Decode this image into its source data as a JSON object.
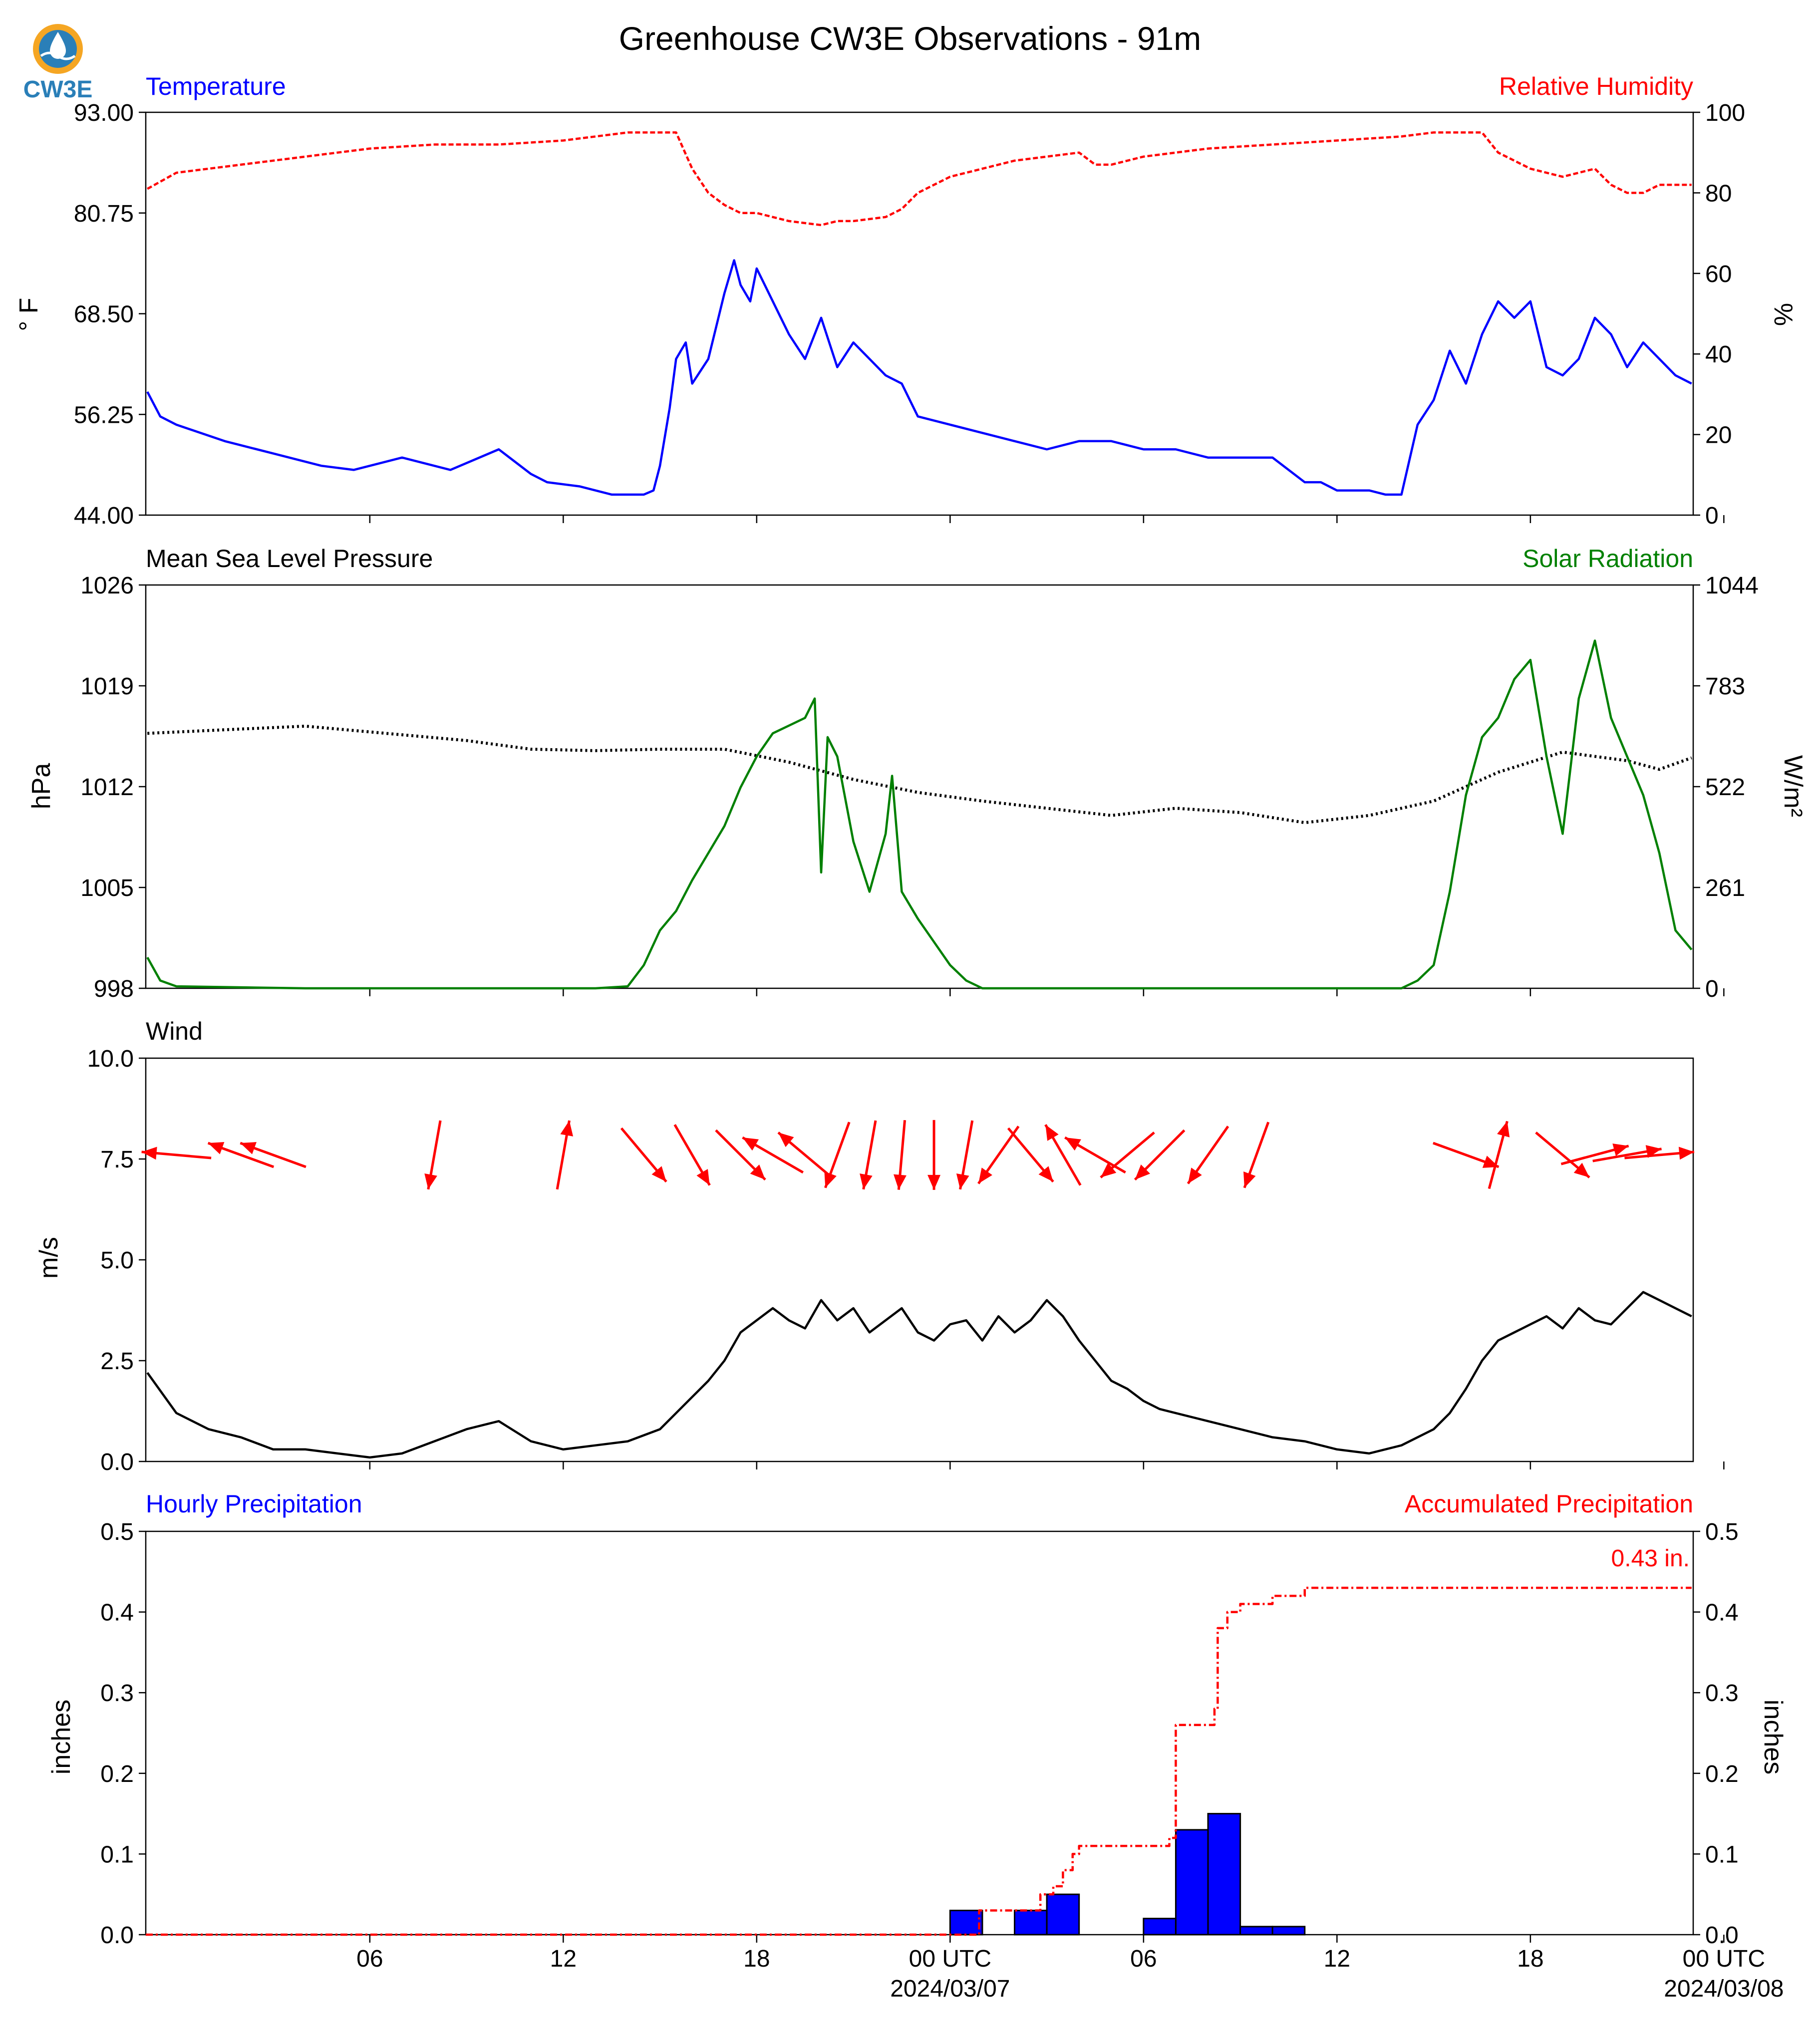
{
  "title": "Greenhouse CW3E Observations - 91m",
  "logo": {
    "text": "CW3E",
    "colors": [
      "#f5a623",
      "#2a7fb8"
    ]
  },
  "colors": {
    "temperature": "#0000ff",
    "humidity": "#ff0000",
    "pressure": "#000000",
    "solar": "#008000",
    "wind_speed": "#000000",
    "wind_arrow": "#ff0000",
    "hourly_precip": "#0000ff",
    "accum_precip": "#ff0000"
  },
  "time_axis": {
    "start_hour": -24.95,
    "end_hour": 23.05,
    "ticks": [
      {
        "hour": -18,
        "label": "06",
        "label2": ""
      },
      {
        "hour": -12,
        "label": "12",
        "label2": ""
      },
      {
        "hour": -6,
        "label": "18",
        "label2": ""
      },
      {
        "hour": 0,
        "label": "00 UTC",
        "label2": "2024/03/07"
      },
      {
        "hour": 6,
        "label": "06",
        "label2": ""
      },
      {
        "hour": 12,
        "label": "12",
        "label2": ""
      },
      {
        "hour": 18,
        "label": "18",
        "label2": ""
      },
      {
        "hour": 24,
        "label": "00 UTC",
        "label2": "2024/03/08"
      }
    ]
  },
  "chart_data": [
    {
      "type": "line",
      "left_title": "Temperature",
      "right_title": "Relative Humidity",
      "ylabel": "° F",
      "y2label": "%",
      "ylim": [
        44,
        93
      ],
      "yticks": [
        "44.00",
        "56.25",
        "68.50",
        "80.75",
        "93.00"
      ],
      "y2lim": [
        0,
        100
      ],
      "y2ticks": [
        "0",
        "20",
        "40",
        "60",
        "80",
        "100"
      ],
      "series": [
        {
          "name": "Temperature",
          "axis": "left",
          "x": [
            -24.9,
            -24.5,
            -24,
            -22.5,
            -21,
            -19.5,
            -18.5,
            -17,
            -15.5,
            -14,
            -13,
            -12.5,
            -11.5,
            -10.5,
            -10,
            -9.5,
            -9.2,
            -9,
            -8.7,
            -8.5,
            -8.2,
            -8,
            -7.5,
            -7,
            -6.7,
            -6.5,
            -6.2,
            -6,
            -5.5,
            -5,
            -4.5,
            -4,
            -3.5,
            -3,
            -2.5,
            -2,
            -1.5,
            -1,
            0,
            1,
            2,
            3,
            4,
            5,
            6,
            7,
            8,
            9,
            10,
            11,
            11.5,
            12,
            12.5,
            13,
            13.5,
            14,
            14.5,
            15,
            15.5,
            16,
            16.5,
            17,
            17.5,
            18,
            18.5,
            19,
            19.5,
            20,
            20.5,
            21,
            21.5,
            22,
            22.5,
            23
          ],
          "values": [
            59,
            56,
            55,
            53,
            51.5,
            50,
            49.5,
            51,
            49.5,
            52,
            49,
            48,
            47.5,
            46.5,
            46.5,
            46.5,
            47,
            50,
            57,
            63,
            65,
            60,
            63,
            71,
            75,
            72,
            70,
            74,
            70,
            66,
            63,
            68,
            62,
            65,
            63,
            61,
            60,
            56,
            55,
            54,
            53,
            52,
            53,
            53,
            52,
            52,
            51,
            51,
            51,
            48,
            48,
            47,
            47,
            47,
            46.5,
            46.5,
            55,
            58,
            64,
            60,
            66,
            70,
            68,
            70,
            62,
            61,
            63,
            68,
            66,
            62,
            65,
            63,
            61,
            60
          ]
        },
        {
          "name": "Relative Humidity",
          "axis": "right",
          "x": [
            -24.9,
            -24,
            -22,
            -20,
            -18,
            -16,
            -14,
            -12,
            -10,
            -9,
            -8.5,
            -8,
            -7.5,
            -7,
            -6.5,
            -6,
            -5,
            -4,
            -3.5,
            -3,
            -2,
            -1.5,
            -1,
            0,
            1,
            2,
            3,
            4,
            4.5,
            5,
            6,
            7,
            8,
            10,
            12,
            14,
            15,
            16,
            16.5,
            17,
            18,
            19,
            20,
            20.5,
            21,
            21.5,
            22,
            23
          ],
          "values": [
            81,
            85,
            87,
            89,
            91,
            92,
            92,
            93,
            95,
            95,
            95,
            86,
            80,
            77,
            75,
            75,
            73,
            72,
            73,
            73,
            74,
            76,
            80,
            84,
            86,
            88,
            89,
            90,
            87,
            87,
            89,
            90,
            91,
            92,
            93,
            94,
            95,
            95,
            95,
            90,
            86,
            84,
            86,
            82,
            80,
            80,
            82,
            82
          ]
        }
      ]
    },
    {
      "type": "line",
      "left_title": "Mean Sea Level Pressure",
      "right_title": "Solar Radiation",
      "ylabel": "hPa",
      "y2label": "W/m²",
      "ylim": [
        998,
        1026
      ],
      "yticks": [
        "998",
        "1005",
        "1012",
        "1019",
        "1026"
      ],
      "y2lim": [
        0,
        1044
      ],
      "y2ticks": [
        "0",
        "261",
        "522",
        "783",
        "1044"
      ],
      "series": [
        {
          "name": "Mean Sea Level Pressure",
          "axis": "left",
          "x": [
            -24.9,
            -22,
            -20,
            -18,
            -15,
            -13,
            -11,
            -9,
            -7,
            -5,
            -3,
            -1,
            1,
            3,
            5,
            7,
            9,
            11,
            13,
            15,
            17,
            19,
            21,
            22,
            23
          ],
          "values": [
            1015.7,
            1016,
            1016.2,
            1015.8,
            1015.2,
            1014.6,
            1014.5,
            1014.6,
            1014.6,
            1013.7,
            1012.5,
            1011.6,
            1011,
            1010.5,
            1010,
            1010.5,
            1010.2,
            1009.5,
            1010,
            1011,
            1013,
            1014.4,
            1013.8,
            1013.2,
            1014
          ]
        },
        {
          "name": "Solar Radiation",
          "axis": "right",
          "x": [
            -24.9,
            -24.5,
            -24,
            -20,
            -16,
            -14,
            -13,
            -12,
            -11,
            -10,
            -9.5,
            -9,
            -8.5,
            -8,
            -7.5,
            -7,
            -6.5,
            -6,
            -5.5,
            -5,
            -4.5,
            -4.2,
            -4,
            -3.8,
            -3.5,
            -3,
            -2.5,
            -2,
            -1.8,
            -1.5,
            -1,
            -0.5,
            0,
            0.5,
            1,
            2,
            5,
            10,
            14,
            14.5,
            15,
            15.5,
            16,
            16.5,
            17,
            17.5,
            18,
            18.5,
            19,
            19.5,
            20,
            20.5,
            21,
            21.5,
            22,
            22.5,
            23
          ],
          "values": [
            80,
            20,
            5,
            0,
            0,
            0,
            0,
            0,
            0,
            5,
            60,
            150,
            200,
            280,
            350,
            420,
            520,
            600,
            660,
            680,
            700,
            750,
            300,
            650,
            600,
            380,
            250,
            400,
            550,
            250,
            180,
            120,
            60,
            20,
            0,
            0,
            0,
            0,
            0,
            20,
            60,
            250,
            500,
            650,
            700,
            800,
            850,
            600,
            400,
            750,
            900,
            700,
            600,
            500,
            350,
            150,
            100
          ]
        }
      ]
    },
    {
      "type": "line",
      "left_title": "Wind",
      "ylabel": "m/s",
      "ylim": [
        0,
        10
      ],
      "yticks": [
        "0.0",
        "2.5",
        "5.0",
        "7.5",
        "10.0"
      ],
      "series": [
        {
          "name": "Wind",
          "axis": "left",
          "x": [
            -24.9,
            -24,
            -23,
            -22,
            -21,
            -20,
            -19,
            -18,
            -17,
            -16,
            -15,
            -14,
            -13,
            -12,
            -11,
            -10,
            -9,
            -8.5,
            -8,
            -7.5,
            -7,
            -6.5,
            -6,
            -5.5,
            -5,
            -4.5,
            -4,
            -3.5,
            -3,
            -2.5,
            -2,
            -1.5,
            -1,
            -0.5,
            0,
            0.5,
            1,
            1.5,
            2,
            2.5,
            3,
            3.5,
            4,
            4.5,
            5,
            5.5,
            6,
            6.5,
            7,
            8,
            9,
            10,
            11,
            12,
            13,
            14,
            15,
            15.5,
            16,
            16.5,
            17,
            17.5,
            18,
            18.5,
            19,
            19.5,
            20,
            20.5,
            21,
            21.5,
            22,
            22.5,
            23
          ],
          "values": [
            2.2,
            1.2,
            0.8,
            0.6,
            0.3,
            0.3,
            0.2,
            0.1,
            0.2,
            0.5,
            0.8,
            1,
            0.5,
            0.3,
            0.4,
            0.5,
            0.8,
            1.2,
            1.6,
            2,
            2.5,
            3.2,
            3.5,
            3.8,
            3.5,
            3.3,
            4,
            3.5,
            3.8,
            3.2,
            3.5,
            3.8,
            3.2,
            3,
            3.4,
            3.5,
            3,
            3.6,
            3.2,
            3.5,
            4,
            3.6,
            3,
            2.5,
            2,
            1.8,
            1.5,
            1.3,
            1.2,
            1,
            0.8,
            0.6,
            0.5,
            0.3,
            0.2,
            0.4,
            0.8,
            1.2,
            1.8,
            2.5,
            3,
            3.2,
            3.4,
            3.6,
            3.3,
            3.8,
            3.5,
            3.4,
            3.8,
            4.2,
            4,
            3.8,
            3.6
          ]
        },
        {
          "name": "Wind direction",
          "axis": "left",
          "x": [
            -24,
            -22,
            -21,
            -16,
            -12,
            -9.5,
            -8,
            -6.5,
            -5.5,
            -4.5,
            -3.5,
            -2.5,
            -1.5,
            -0.5,
            0.5,
            1.5,
            2.5,
            3.5,
            4.5,
            5.5,
            6.5,
            8,
            9.5,
            16,
            17,
            19,
            20,
            21,
            22
          ],
          "values": [
            275,
            290,
            290,
            190,
            10,
            140,
            150,
            135,
            300,
            310,
            200,
            190,
            185,
            180,
            190,
            215,
            140,
            330,
            300,
            230,
            225,
            215,
            200,
            110,
            15,
            130,
            75,
            80,
            85
          ]
        }
      ]
    },
    {
      "type": "bar",
      "left_title": "Hourly Precipitation",
      "right_title": "Accumulated Precipitation",
      "ylabel": "inches",
      "y2label": "inches",
      "ylim": [
        0,
        0.5
      ],
      "yticks": [
        "0.0",
        "0.1",
        "0.2",
        "0.3",
        "0.4",
        "0.5"
      ],
      "y2lim": [
        0,
        0.5
      ],
      "y2ticks": [
        "0.0",
        "0.1",
        "0.2",
        "0.3",
        "0.4",
        "0.5"
      ],
      "annotation": "0.43 in.",
      "series": [
        {
          "name": "Hourly Precipitation",
          "axis": "left",
          "x": [
            0.5,
            2.5,
            3.5,
            6.5,
            7.5,
            8.5,
            9.5,
            10.5
          ],
          "values": [
            0.03,
            0.03,
            0.05,
            0.02,
            0.13,
            0.15,
            0.01,
            0.01
          ]
        },
        {
          "name": "Accumulated Precipitation",
          "axis": "right",
          "x": [
            -24.95,
            0.2,
            0.9,
            1.5,
            2,
            2.8,
            3.2,
            3.5,
            3.8,
            4,
            5,
            6,
            6.8,
            7,
            7.8,
            8.2,
            8.3,
            8.6,
            9,
            9.6,
            10,
            10.5,
            11,
            12,
            14,
            23
          ],
          "values": [
            0,
            0,
            0.03,
            0.03,
            0.03,
            0.05,
            0.06,
            0.08,
            0.1,
            0.11,
            0.11,
            0.11,
            0.12,
            0.26,
            0.26,
            0.28,
            0.38,
            0.4,
            0.41,
            0.41,
            0.42,
            0.42,
            0.43,
            0.43,
            0.43,
            0.43
          ]
        }
      ]
    }
  ]
}
